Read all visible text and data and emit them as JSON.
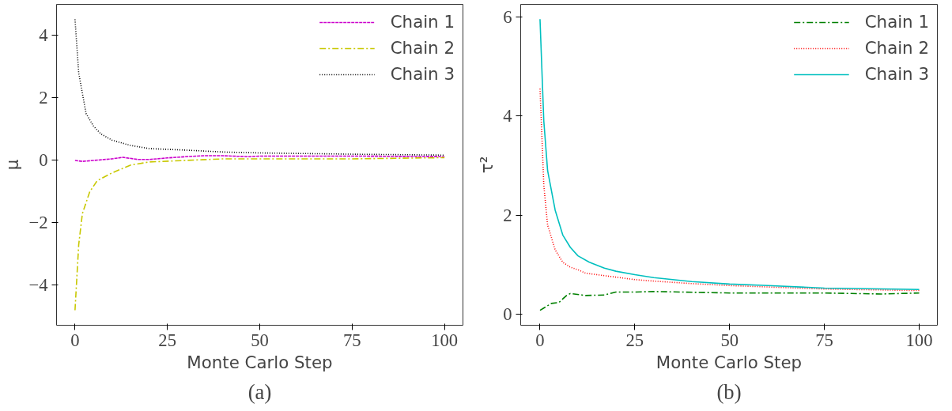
{
  "chart_data": [
    {
      "type": "line",
      "title": "(a)",
      "xlabel": "Monte Carlo Step",
      "ylabel": "μ",
      "xlim": [
        -5,
        105
      ],
      "ylim": [
        -5.28,
        5.0
      ],
      "xticks": [
        0,
        25,
        50,
        75,
        100
      ],
      "yticks": [
        {
          "value": -4,
          "label": "−4"
        },
        {
          "value": -2,
          "label": "−2"
        },
        0,
        2,
        4
      ],
      "grid": false,
      "legend": "top right",
      "series": [
        {
          "name": "Chain 1",
          "color": "#cc00cc",
          "line_style": "dashed",
          "x": [
            0,
            2,
            5,
            10,
            13,
            17,
            20,
            25,
            30,
            35,
            40,
            47,
            50,
            75,
            100
          ],
          "values": [
            0,
            -0.03,
            0,
            0.05,
            0.1,
            0.03,
            0.03,
            0.08,
            0.12,
            0.15,
            0.15,
            0.12,
            0.14,
            0.14,
            0.12
          ]
        },
        {
          "name": "Chain 2",
          "color": "#c8c800",
          "line_style": "dashdot",
          "x": [
            0,
            1,
            2,
            4,
            6,
            10,
            15,
            20,
            30,
            40,
            50,
            75,
            100
          ],
          "values": [
            -4.8,
            -2.7,
            -1.7,
            -1.0,
            -0.65,
            -0.4,
            -0.15,
            -0.05,
            0.0,
            0.05,
            0.05,
            0.05,
            0.09
          ]
        },
        {
          "name": "Chain 3",
          "color": "#000000",
          "line_style": "dotted",
          "x": [
            0,
            1,
            3,
            5,
            7,
            10,
            15,
            20,
            30,
            40,
            50,
            75,
            100
          ],
          "values": [
            4.52,
            2.8,
            1.5,
            1.1,
            0.85,
            0.65,
            0.48,
            0.38,
            0.33,
            0.27,
            0.24,
            0.2,
            0.17
          ]
        }
      ]
    },
    {
      "type": "line",
      "title": "(b)",
      "xlabel": "Monte Carlo Step",
      "ylabel": "τ²",
      "xlim": [
        -5.1,
        104.8
      ],
      "ylim": [
        -0.22,
        6.25
      ],
      "xticks": [
        0,
        25,
        50,
        75,
        100
      ],
      "yticks": [
        0,
        2,
        4,
        6
      ],
      "grid": false,
      "legend": "top right",
      "series": [
        {
          "name": "Chain 1",
          "color": "#008000",
          "line_style": "dashdot",
          "x": [
            0,
            3,
            5,
            7,
            8,
            12,
            17,
            20,
            25,
            30,
            50,
            75,
            90,
            100
          ],
          "values": [
            0.08,
            0.22,
            0.24,
            0.38,
            0.42,
            0.38,
            0.39,
            0.45,
            0.45,
            0.46,
            0.43,
            0.43,
            0.41,
            0.43
          ]
        },
        {
          "name": "Chain 2",
          "color": "#ff0000",
          "line_style": "dotted",
          "x": [
            0,
            1,
            2,
            4,
            6,
            8,
            10,
            12,
            15,
            20,
            25,
            30,
            40,
            50,
            75,
            100
          ],
          "values": [
            4.55,
            2.6,
            1.8,
            1.3,
            1.05,
            0.95,
            0.9,
            0.83,
            0.8,
            0.75,
            0.7,
            0.67,
            0.62,
            0.58,
            0.51,
            0.48
          ]
        },
        {
          "name": "Chain 3",
          "color": "#00bfbf",
          "line_style": "solid",
          "x": [
            0,
            1,
            2,
            4,
            6,
            8,
            10,
            13,
            17,
            20,
            25,
            30,
            40,
            50,
            60,
            75,
            100
          ],
          "values": [
            5.95,
            3.9,
            2.9,
            2.1,
            1.6,
            1.35,
            1.18,
            1.05,
            0.93,
            0.87,
            0.8,
            0.74,
            0.66,
            0.61,
            0.58,
            0.53,
            0.5
          ]
        }
      ]
    }
  ]
}
